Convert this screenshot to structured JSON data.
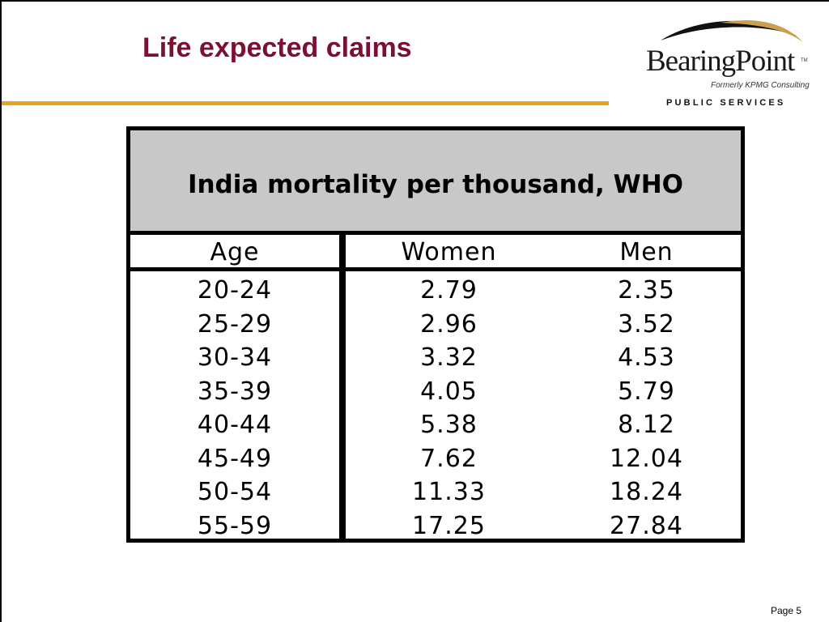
{
  "slide": {
    "title": "Life expected claims",
    "page_label": "Page 5"
  },
  "logo": {
    "name": "BearingPoint",
    "trademark": "TM",
    "subtitle": "Formerly KPMG Consulting",
    "division": "PUBLIC SERVICES"
  },
  "colors": {
    "title": "#7b1030",
    "rule": "#f0a020",
    "table_header_bg": "#c8c8c8",
    "logo_swoosh_dark": "#111111",
    "logo_swoosh_gold": "#c9a050"
  },
  "table": {
    "title": "India mortality per thousand, WHO",
    "headers": [
      "Age",
      "Women",
      "Men"
    ],
    "rows": [
      [
        "20-24",
        "2.79",
        "2.35"
      ],
      [
        "25-29",
        "2.96",
        "3.52"
      ],
      [
        "30-34",
        "3.32",
        "4.53"
      ],
      [
        "35-39",
        "4.05",
        "5.79"
      ],
      [
        "40-44",
        "5.38",
        "8.12"
      ],
      [
        "45-49",
        "7.62",
        "12.04"
      ],
      [
        "50-54",
        "11.33",
        "18.24"
      ],
      [
        "55-59",
        "17.25",
        "27.84"
      ]
    ]
  }
}
